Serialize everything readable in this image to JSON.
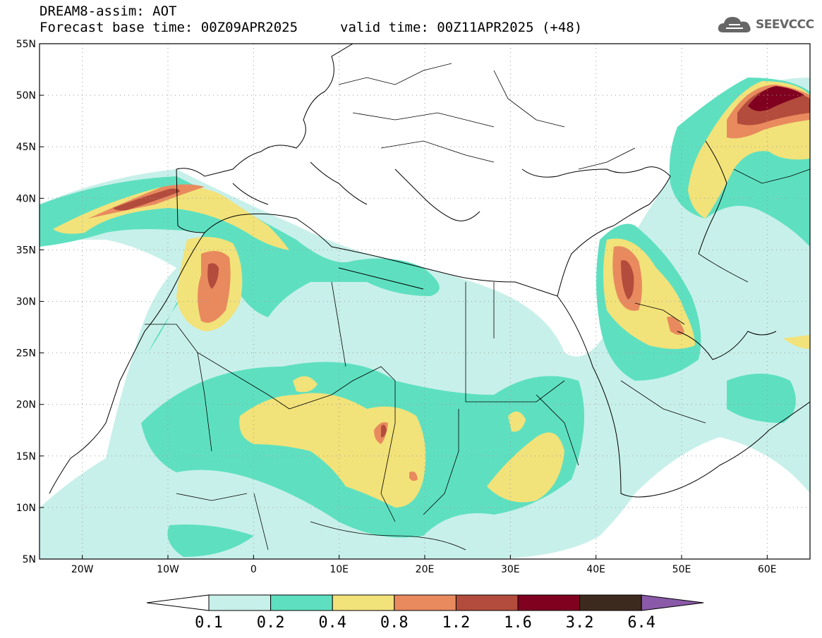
{
  "header": {
    "title": "DREAM8-assim: AOT",
    "base_time": "Forecast base time: 00Z09APR2025",
    "valid_time": "valid time: 00Z11APR2025 (+48)",
    "logo_text": "SEEVCCC",
    "logo_icon": "cloud-icon"
  },
  "map": {
    "lon_labels": [
      "20W",
      "10W",
      "0",
      "10E",
      "20E",
      "30E",
      "40E",
      "50E",
      "60E"
    ],
    "lat_labels": [
      "55N",
      "50N",
      "45N",
      "40N",
      "35N",
      "30N",
      "25N",
      "20N",
      "15N",
      "10N",
      "5N"
    ],
    "lon_range": [
      -25,
      65
    ],
    "lat_range": [
      5,
      55
    ],
    "grid": "dotted"
  },
  "colorbar": {
    "levels": [
      "0.1",
      "0.2",
      "0.4",
      "0.8",
      "1.2",
      "1.6",
      "3.2",
      "6.4"
    ],
    "colors": [
      "#c8f0ea",
      "#5ee0c0",
      "#f2e27a",
      "#e88a5e",
      "#b34c3c",
      "#800020",
      "#3d2a1e"
    ],
    "under_color": "#ffffff",
    "over_color": "#8a5aa8"
  },
  "palette": {
    "c01": "#c8f0ea",
    "c02": "#5ee0c0",
    "c04": "#f2e27a",
    "c08": "#e88a5e",
    "c12": "#b34c3c",
    "c16": "#800020"
  }
}
